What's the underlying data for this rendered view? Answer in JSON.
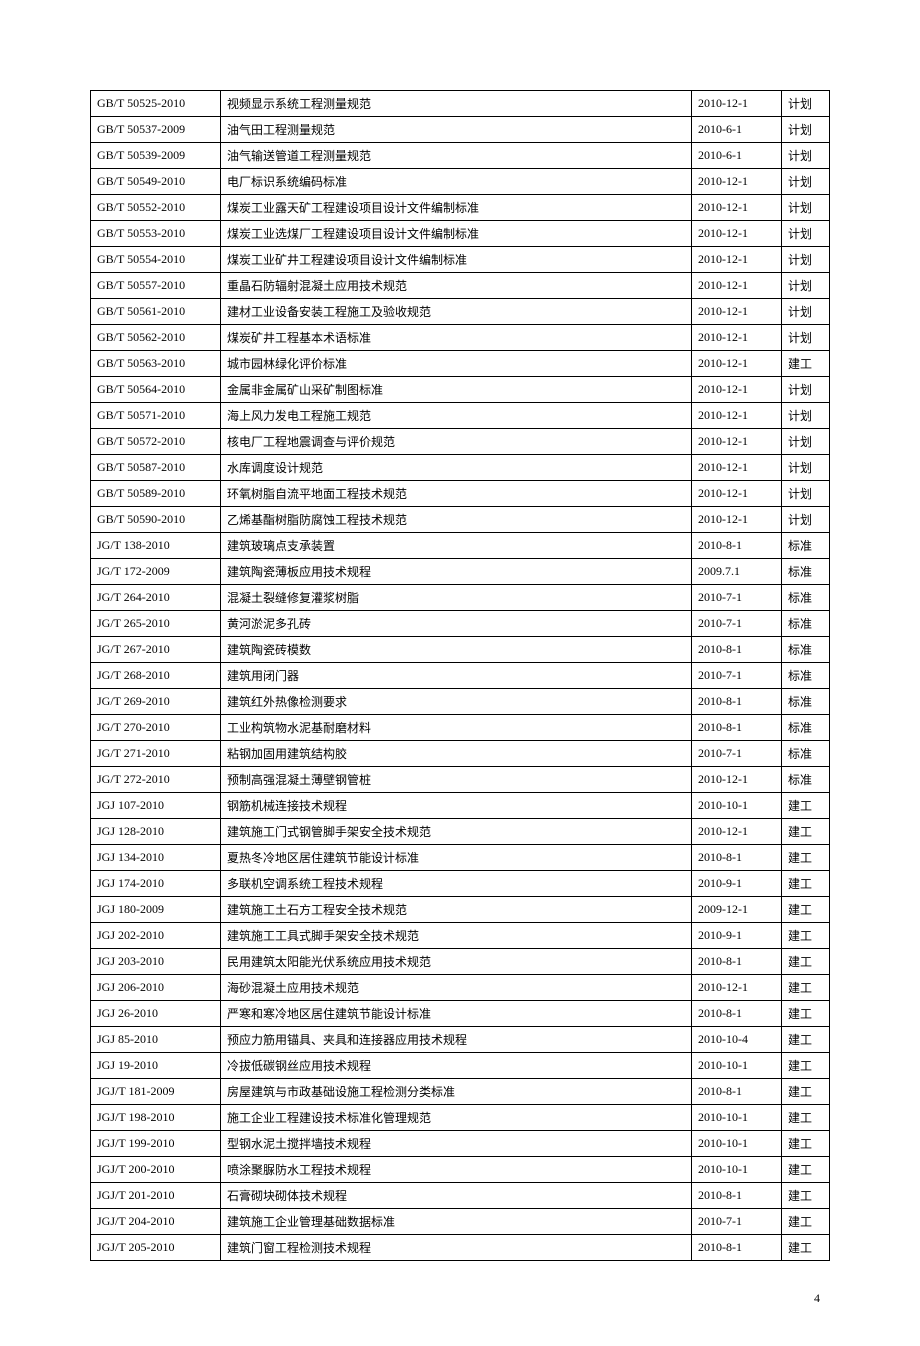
{
  "page_number": "4",
  "table": {
    "columns": [
      "code",
      "title",
      "date",
      "category"
    ],
    "column_widths": [
      "130px",
      "auto",
      "90px",
      "48px"
    ],
    "border_color": "#000000",
    "font_size": 12,
    "text_color": "#000000",
    "background_color": "#ffffff",
    "rows": [
      [
        "GB/T 50525-2010",
        "视频显示系统工程测量规范",
        "2010-12-1",
        "计划"
      ],
      [
        "GB/T 50537-2009",
        "油气田工程测量规范",
        "2010-6-1",
        "计划"
      ],
      [
        "GB/T 50539-2009",
        "油气输送管道工程测量规范",
        "2010-6-1",
        "计划"
      ],
      [
        "GB/T 50549-2010",
        "电厂标识系统编码标准",
        "2010-12-1",
        "计划"
      ],
      [
        "GB/T 50552-2010",
        "煤炭工业露天矿工程建设项目设计文件编制标准",
        "2010-12-1",
        "计划"
      ],
      [
        "GB/T 50553-2010",
        "煤炭工业选煤厂工程建设项目设计文件编制标准",
        "2010-12-1",
        "计划"
      ],
      [
        "GB/T 50554-2010",
        "煤炭工业矿井工程建设项目设计文件编制标准",
        "2010-12-1",
        "计划"
      ],
      [
        "GB/T 50557-2010",
        "重晶石防辐射混凝土应用技术规范",
        "2010-12-1",
        "计划"
      ],
      [
        "GB/T 50561-2010",
        "建材工业设备安装工程施工及验收规范",
        "2010-12-1",
        "计划"
      ],
      [
        "GB/T 50562-2010",
        "煤炭矿井工程基本术语标准",
        "2010-12-1",
        "计划"
      ],
      [
        "GB/T 50563-2010",
        "城市园林绿化评价标准",
        "2010-12-1",
        "建工"
      ],
      [
        "GB/T 50564-2010",
        "金属非金属矿山采矿制图标准",
        "2010-12-1",
        "计划"
      ],
      [
        "GB/T 50571-2010",
        "海上风力发电工程施工规范",
        "2010-12-1",
        "计划"
      ],
      [
        "GB/T 50572-2010",
        "核电厂工程地震调查与评价规范",
        "2010-12-1",
        "计划"
      ],
      [
        "GB/T 50587-2010",
        "水库调度设计规范",
        "2010-12-1",
        "计划"
      ],
      [
        "GB/T 50589-2010",
        "环氧树脂自流平地面工程技术规范",
        "2010-12-1",
        "计划"
      ],
      [
        "GB/T 50590-2010",
        "乙烯基酯树脂防腐蚀工程技术规范",
        "2010-12-1",
        "计划"
      ],
      [
        "JG/T 138-2010",
        "建筑玻璃点支承装置",
        "2010-8-1",
        "标准"
      ],
      [
        "JG/T 172-2009",
        "建筑陶瓷薄板应用技术规程",
        "2009.7.1",
        "标准"
      ],
      [
        "JG/T 264-2010",
        "混凝土裂缝修复灌浆树脂",
        "2010-7-1",
        "标准"
      ],
      [
        "JG/T 265-2010",
        "黄河淤泥多孔砖",
        "2010-7-1",
        "标准"
      ],
      [
        "JG/T 267-2010",
        "建筑陶瓷砖模数",
        "2010-8-1",
        "标准"
      ],
      [
        "JG/T 268-2010",
        "建筑用闭门器",
        "2010-7-1",
        "标准"
      ],
      [
        "JG/T 269-2010",
        "建筑红外热像检测要求",
        "2010-8-1",
        "标准"
      ],
      [
        "JG/T 270-2010",
        "工业构筑物水泥基耐磨材料",
        "2010-8-1",
        "标准"
      ],
      [
        "JG/T 271-2010",
        "粘钢加固用建筑结构胶",
        "2010-7-1",
        "标准"
      ],
      [
        "JG/T 272-2010",
        "预制高强混凝土薄壁钢管桩",
        "2010-12-1",
        "标准"
      ],
      [
        "JGJ 107-2010",
        "钢筋机械连接技术规程",
        "2010-10-1",
        "建工"
      ],
      [
        "JGJ 128-2010",
        "建筑施工门式钢管脚手架安全技术规范",
        "2010-12-1",
        "建工"
      ],
      [
        "JGJ 134-2010",
        "夏热冬冷地区居住建筑节能设计标准",
        "2010-8-1",
        "建工"
      ],
      [
        "JGJ 174-2010",
        "多联机空调系统工程技术规程",
        "2010-9-1",
        "建工"
      ],
      [
        "JGJ 180-2009",
        "建筑施工土石方工程安全技术规范",
        "2009-12-1",
        "建工"
      ],
      [
        "JGJ 202-2010",
        "建筑施工工具式脚手架安全技术规范",
        "2010-9-1",
        "建工"
      ],
      [
        "JGJ 203-2010",
        "民用建筑太阳能光伏系统应用技术规范",
        "2010-8-1",
        "建工"
      ],
      [
        "JGJ 206-2010",
        "海砂混凝土应用技术规范",
        "2010-12-1",
        "建工"
      ],
      [
        "JGJ 26-2010",
        "严寒和寒冷地区居住建筑节能设计标准",
        "2010-8-1",
        "建工"
      ],
      [
        "JGJ 85-2010",
        "预应力筋用锚具、夹具和连接器应用技术规程",
        "2010-10-4",
        "建工"
      ],
      [
        "JGJ 19-2010",
        "冷拔低碳钢丝应用技术规程",
        "2010-10-1",
        "建工"
      ],
      [
        "JGJ/T 181-2009",
        "房屋建筑与市政基础设施工程检测分类标准",
        "2010-8-1",
        "建工"
      ],
      [
        "JGJ/T 198-2010",
        "施工企业工程建设技术标准化管理规范",
        "2010-10-1",
        "建工"
      ],
      [
        "JGJ/T 199-2010",
        "型钢水泥土搅拌墙技术规程",
        "2010-10-1",
        "建工"
      ],
      [
        "JGJ/T 200-2010",
        "喷涂聚脲防水工程技术规程",
        "2010-10-1",
        "建工"
      ],
      [
        "JGJ/T 201-2010",
        "石膏砌块砌体技术规程",
        "2010-8-1",
        "建工"
      ],
      [
        "JGJ/T 204-2010",
        "建筑施工企业管理基础数据标准",
        "2010-7-1",
        "建工"
      ],
      [
        "JGJ/T 205-2010",
        "建筑门窗工程检测技术规程",
        "2010-8-1",
        "建工"
      ]
    ]
  }
}
